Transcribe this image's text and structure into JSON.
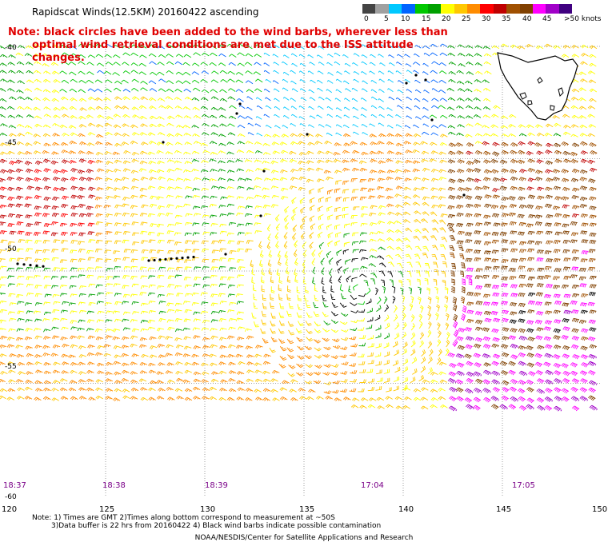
{
  "header": {
    "title": "Rapidscat Winds(12.5KM) 20160422 ascending",
    "note_lines": [
      "Note: black circles have been added to the wind barbs, wherever less than",
      "optimal wind retrieval conditions are met due to the ISS attitude changes."
    ]
  },
  "legend": {
    "labels": [
      "0",
      "5",
      "10",
      "15",
      "20",
      "25",
      "30",
      "35",
      "40",
      "45",
      ">50 knots"
    ],
    "colors": [
      "#444444",
      "#a0a0a0",
      "#00c8ff",
      "#0064ff",
      "#00c800",
      "#00a000",
      "#ffff00",
      "#ffc800",
      "#ff8c00",
      "#ff0000",
      "#c00000",
      "#a05000",
      "#804000",
      "#ff00ff",
      "#a000c8",
      "#400080"
    ]
  },
  "map": {
    "lon_ticks": [
      "120",
      "125",
      "130",
      "135",
      "140",
      "145",
      "150"
    ],
    "lat_ticks": [
      "-40",
      "-45",
      "-50",
      "-55",
      "-60"
    ],
    "time_labels": [
      "18:37",
      "18:38",
      "18:39",
      "17:04",
      "17:05"
    ],
    "colors": {
      "coast": "#000000",
      "grid": "#888888",
      "time": "#7a0088"
    }
  },
  "footer": {
    "note_line1": "Note: 1) Times are GMT 2)Times along bottom correspond to measurement at ~50S",
    "note_line2": "3)Data buffer is 22 hrs from 20160422 4) Black wind barbs indicate possible contamination",
    "credit": "NOAA/NESDIS/Center for Satellite Applications and Research"
  }
}
